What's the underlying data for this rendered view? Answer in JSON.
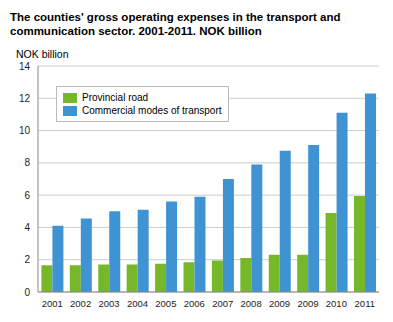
{
  "chart_data": {
    "type": "bar",
    "title": "The counties' gross operating expenses in the transport and communication sector. 2001-2011. NOK billion",
    "y_label": "NOK billion",
    "categories": [
      "2001",
      "2002",
      "2003",
      "2004",
      "2005",
      "2006",
      "2007",
      "2008",
      "2009",
      "2009",
      "2010",
      "2011"
    ],
    "series": [
      {
        "name": "Provincial road",
        "color": "#76b82a",
        "values": [
          1.65,
          1.65,
          1.7,
          1.7,
          1.75,
          1.85,
          1.95,
          2.1,
          2.3,
          2.3,
          4.9,
          5.95
        ]
      },
      {
        "name": "Commercial modes of transport",
        "color": "#3f93d3",
        "values": [
          4.1,
          4.55,
          5.0,
          5.1,
          5.6,
          5.9,
          7.0,
          7.9,
          8.75,
          9.1,
          11.1,
          12.3
        ]
      }
    ],
    "ylim": [
      0,
      14
    ],
    "yticks": [
      0,
      2,
      4,
      6,
      8,
      10,
      12,
      14
    ],
    "grid": true,
    "legend": "upper left"
  }
}
